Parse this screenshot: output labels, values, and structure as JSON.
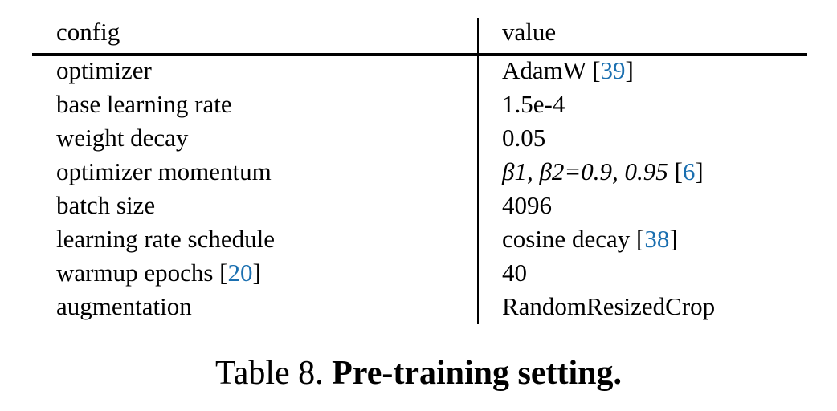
{
  "table": {
    "headers": [
      "config",
      "value"
    ],
    "rows": [
      {
        "config": "optimizer",
        "value": "AdamW",
        "value_ref": "39"
      },
      {
        "config": "base learning rate",
        "value": "1.5e-4"
      },
      {
        "config": "weight decay",
        "value": "0.05"
      },
      {
        "config": "optimizer momentum",
        "value": "β1, β2=0.9, 0.95",
        "value_ref": "6"
      },
      {
        "config": "batch size",
        "value": "4096"
      },
      {
        "config": "learning rate schedule",
        "value": "cosine decay",
        "value_ref": "38"
      },
      {
        "config": "warmup epochs",
        "config_ref": "20",
        "value": "40"
      },
      {
        "config": "augmentation",
        "value": "RandomResizedCrop"
      }
    ]
  },
  "caption": {
    "label": "Table 8.",
    "title": "Pre-training setting."
  },
  "colors": {
    "link": "#1a6fb0"
  }
}
